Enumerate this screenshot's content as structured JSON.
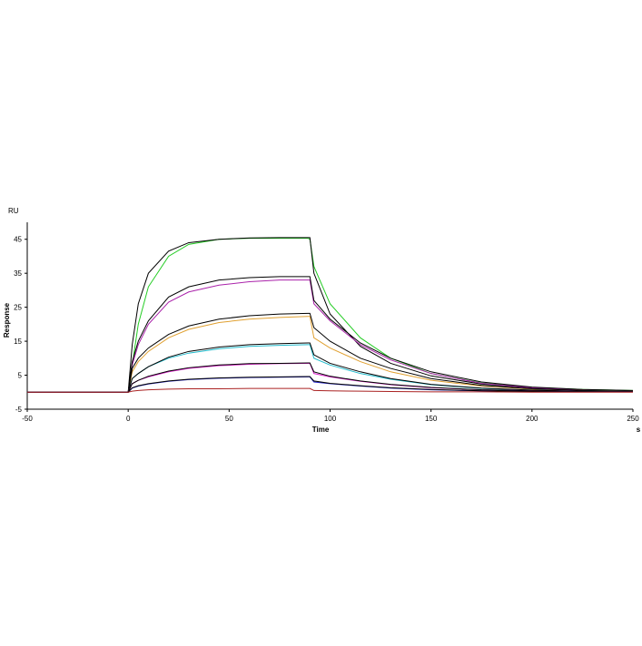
{
  "chart_data": {
    "type": "line",
    "y_unit": "RU",
    "ylabel": "Response",
    "xlabel": "Time",
    "x_unit": "s",
    "x": [
      -50,
      0,
      2,
      5,
      10,
      20,
      30,
      45,
      60,
      75,
      89,
      90,
      92,
      100,
      115,
      130,
      150,
      175,
      200,
      225,
      250
    ],
    "xlim": [
      -50,
      250
    ],
    "xticks": [
      -50,
      0,
      50,
      100,
      150,
      200,
      250
    ],
    "ylim": [
      -5,
      50
    ],
    "yticks": [
      -5,
      5,
      15,
      25,
      35,
      45
    ],
    "grid": false,
    "series": [
      {
        "color": "#22cc22",
        "values": [
          0,
          0,
          8,
          20,
          31,
          40,
          43.5,
          45,
          45.3,
          45.3,
          45.3,
          45,
          37,
          26,
          16,
          10,
          5.5,
          2.7,
          1.4,
          0.8,
          0.5
        ]
      },
      {
        "color": "#000000",
        "values": [
          0,
          0,
          14,
          26,
          35,
          41.5,
          44,
          45,
          45.4,
          45.5,
          45.5,
          45.5,
          35,
          23,
          13.5,
          8.5,
          4.8,
          2.4,
          1.2,
          0.7,
          0.4
        ]
      },
      {
        "color": "#aa22aa",
        "values": [
          0,
          0,
          8,
          14,
          20,
          26.5,
          29.5,
          31.5,
          32.5,
          33,
          33,
          33,
          26,
          21,
          14,
          9.5,
          5.5,
          2.6,
          1.3,
          0.7,
          0.4
        ]
      },
      {
        "color": "#000000",
        "values": [
          0,
          0,
          9,
          15,
          21,
          28,
          31,
          33,
          33.7,
          34,
          34,
          34,
          27,
          21.5,
          14.5,
          10,
          6,
          3,
          1.5,
          0.8,
          0.5
        ]
      },
      {
        "color": "#e0a030",
        "values": [
          0,
          0,
          6,
          9,
          12,
          16,
          18.5,
          20.5,
          21.5,
          22,
          22.3,
          22.3,
          16,
          13,
          9,
          6,
          3.5,
          1.8,
          0.9,
          0.5,
          0.3
        ]
      },
      {
        "color": "#000000",
        "values": [
          0,
          0,
          7,
          10,
          13,
          17,
          19.5,
          21.5,
          22.5,
          23,
          23.2,
          23.2,
          19,
          15,
          10,
          7,
          4,
          2,
          1,
          0.5,
          0.3
        ]
      },
      {
        "color": "#22bbcc",
        "values": [
          0,
          0,
          4,
          5.5,
          7.5,
          10,
          11.5,
          12.8,
          13.5,
          13.8,
          14,
          14,
          10,
          8,
          5.5,
          3.8,
          2.2,
          1.1,
          0.6,
          0.3,
          0.2
        ]
      },
      {
        "color": "#000000",
        "values": [
          0,
          0,
          4,
          5.5,
          7.5,
          10.3,
          12,
          13.3,
          14,
          14.3,
          14.5,
          14.5,
          11,
          8.5,
          6,
          4,
          2.3,
          1.2,
          0.6,
          0.3,
          0.2
        ]
      },
      {
        "color": "#dd22cc",
        "values": [
          0,
          0,
          2.5,
          3.5,
          4.5,
          6,
          7,
          7.8,
          8.2,
          8.4,
          8.5,
          8.5,
          5.5,
          4.5,
          3.2,
          2.2,
          1.3,
          0.7,
          0.4,
          0.2,
          0.1
        ]
      },
      {
        "color": "#000000",
        "values": [
          0,
          0,
          2.5,
          3.5,
          4.7,
          6.2,
          7.2,
          8,
          8.4,
          8.5,
          8.6,
          8.6,
          6,
          4.7,
          3.3,
          2.3,
          1.4,
          0.7,
          0.4,
          0.2,
          0.1
        ]
      },
      {
        "color": "#2222cc",
        "values": [
          0,
          0,
          1.2,
          1.8,
          2.4,
          3.2,
          3.7,
          4.1,
          4.3,
          4.4,
          4.5,
          4.5,
          3,
          2.5,
          1.8,
          1.2,
          0.7,
          0.4,
          0.2,
          0.1,
          0.1
        ]
      },
      {
        "color": "#000000",
        "values": [
          0,
          0,
          1.3,
          1.9,
          2.5,
          3.3,
          3.8,
          4.2,
          4.4,
          4.5,
          4.6,
          4.6,
          3.3,
          2.6,
          1.9,
          1.3,
          0.8,
          0.4,
          0.2,
          0.1,
          0.1
        ]
      },
      {
        "color": "#aa2222",
        "values": [
          0,
          0,
          0.3,
          0.5,
          0.7,
          0.9,
          1,
          1,
          1.1,
          1.1,
          1.1,
          1.1,
          0.5,
          0.4,
          0.3,
          0.2,
          0.1,
          0.1,
          0,
          0,
          0
        ]
      }
    ]
  }
}
